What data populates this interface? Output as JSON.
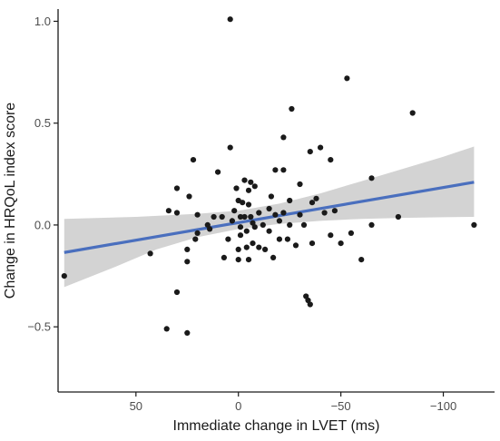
{
  "chart_data": {
    "type": "scatter",
    "title": "",
    "xlabel": "Immediate change in LVET (ms)",
    "ylabel": "Change in HRQoL index score",
    "x_reversed": true,
    "xlim": [
      88,
      -125
    ],
    "ylim": [
      -0.82,
      1.06
    ],
    "x_ticks": [
      50,
      0,
      -50,
      -100
    ],
    "x_tick_labels": [
      "50",
      "0",
      "−50",
      "−100"
    ],
    "y_ticks": [
      -0.5,
      0.0,
      0.5,
      1.0
    ],
    "y_tick_labels": [
      "−0.5",
      "0.0",
      "0.5",
      "1.0"
    ],
    "grid": false,
    "legend": "none",
    "colors": {
      "points": "#1a1a1a",
      "fit_line": "#4a6fbe",
      "confidence_band": "#d3d3d3",
      "axis": "#1a1a1a",
      "tick_text": "#4d4d4d"
    },
    "points": [
      {
        "x": 85,
        "y": -0.25
      },
      {
        "x": 43,
        "y": -0.14
      },
      {
        "x": 34,
        "y": 0.07
      },
      {
        "x": 30,
        "y": 0.18
      },
      {
        "x": 30,
        "y": 0.06
      },
      {
        "x": 35,
        "y": -0.51
      },
      {
        "x": 30,
        "y": -0.33
      },
      {
        "x": 25,
        "y": -0.53
      },
      {
        "x": 25,
        "y": -0.18
      },
      {
        "x": 25,
        "y": -0.12
      },
      {
        "x": 24,
        "y": 0.14
      },
      {
        "x": 22,
        "y": 0.32
      },
      {
        "x": 21,
        "y": -0.07
      },
      {
        "x": 20,
        "y": 0.05
      },
      {
        "x": 20,
        "y": -0.04
      },
      {
        "x": 15,
        "y": 0.0
      },
      {
        "x": 14,
        "y": -0.02
      },
      {
        "x": 12,
        "y": 0.04
      },
      {
        "x": 10,
        "y": 0.26
      },
      {
        "x": 8,
        "y": 0.04
      },
      {
        "x": 7,
        "y": -0.16
      },
      {
        "x": 5,
        "y": -0.07
      },
      {
        "x": 4,
        "y": 1.01
      },
      {
        "x": 4,
        "y": 0.38
      },
      {
        "x": 3,
        "y": 0.02
      },
      {
        "x": 2,
        "y": 0.07
      },
      {
        "x": 1,
        "y": 0.18
      },
      {
        "x": 0,
        "y": 0.12
      },
      {
        "x": -1,
        "y": 0.04
      },
      {
        "x": -1,
        "y": -0.01
      },
      {
        "x": -1,
        "y": -0.05
      },
      {
        "x": 0,
        "y": -0.12
      },
      {
        "x": 0,
        "y": -0.17
      },
      {
        "x": -2,
        "y": 0.11
      },
      {
        "x": -3,
        "y": 0.22
      },
      {
        "x": -3,
        "y": 0.04
      },
      {
        "x": -4,
        "y": -0.03
      },
      {
        "x": -4,
        "y": -0.11
      },
      {
        "x": -5,
        "y": 0.17
      },
      {
        "x": -5,
        "y": 0.1
      },
      {
        "x": -5,
        "y": -0.17
      },
      {
        "x": -6,
        "y": 0.21
      },
      {
        "x": -6,
        "y": 0.04
      },
      {
        "x": -7,
        "y": 0.01
      },
      {
        "x": -7,
        "y": -0.09
      },
      {
        "x": -8,
        "y": 0.19
      },
      {
        "x": -8,
        "y": -0.01
      },
      {
        "x": -10,
        "y": 0.06
      },
      {
        "x": -10,
        "y": -0.11
      },
      {
        "x": -12,
        "y": 0.0
      },
      {
        "x": -13,
        "y": -0.12
      },
      {
        "x": -15,
        "y": 0.08
      },
      {
        "x": -15,
        "y": -0.03
      },
      {
        "x": -16,
        "y": 0.14
      },
      {
        "x": -17,
        "y": -0.16
      },
      {
        "x": -18,
        "y": 0.05
      },
      {
        "x": -18,
        "y": 0.27
      },
      {
        "x": -20,
        "y": 0.02
      },
      {
        "x": -20,
        "y": -0.07
      },
      {
        "x": -22,
        "y": 0.43
      },
      {
        "x": -22,
        "y": 0.27
      },
      {
        "x": -22,
        "y": 0.06
      },
      {
        "x": -24,
        "y": -0.07
      },
      {
        "x": -25,
        "y": 0.12
      },
      {
        "x": -25,
        "y": 0.0
      },
      {
        "x": -26,
        "y": 0.57
      },
      {
        "x": -28,
        "y": -0.1
      },
      {
        "x": -30,
        "y": 0.2
      },
      {
        "x": -30,
        "y": 0.05
      },
      {
        "x": -32,
        "y": 0.0
      },
      {
        "x": -33,
        "y": -0.35
      },
      {
        "x": -34,
        "y": -0.37
      },
      {
        "x": -35,
        "y": -0.39
      },
      {
        "x": -35,
        "y": 0.36
      },
      {
        "x": -36,
        "y": 0.11
      },
      {
        "x": -36,
        "y": -0.09
      },
      {
        "x": -38,
        "y": 0.13
      },
      {
        "x": -40,
        "y": 0.38
      },
      {
        "x": -42,
        "y": 0.06
      },
      {
        "x": -45,
        "y": 0.32
      },
      {
        "x": -45,
        "y": -0.05
      },
      {
        "x": -47,
        "y": 0.07
      },
      {
        "x": -50,
        "y": -0.09
      },
      {
        "x": -53,
        "y": 0.72
      },
      {
        "x": -55,
        "y": -0.04
      },
      {
        "x": -60,
        "y": -0.17
      },
      {
        "x": -65,
        "y": 0.23
      },
      {
        "x": -65,
        "y": 0.0
      },
      {
        "x": -78,
        "y": 0.04
      },
      {
        "x": -85,
        "y": 0.55
      },
      {
        "x": -115,
        "y": 0.0
      }
    ],
    "fit_line": [
      {
        "x": 85,
        "y": -0.135
      },
      {
        "x": -115,
        "y": 0.21
      }
    ],
    "confidence_band": {
      "upper": [
        {
          "x": 85,
          "y": 0.03
        },
        {
          "x": 50,
          "y": 0.04
        },
        {
          "x": 20,
          "y": 0.055
        },
        {
          "x": 0,
          "y": 0.07
        },
        {
          "x": -20,
          "y": 0.105
        },
        {
          "x": -40,
          "y": 0.155
        },
        {
          "x": -60,
          "y": 0.215
        },
        {
          "x": -80,
          "y": 0.275
        },
        {
          "x": -100,
          "y": 0.335
        },
        {
          "x": -115,
          "y": 0.385
        }
      ],
      "lower": [
        {
          "x": 85,
          "y": -0.305
        },
        {
          "x": 60,
          "y": -0.205
        },
        {
          "x": 40,
          "y": -0.12
        },
        {
          "x": 20,
          "y": -0.06
        },
        {
          "x": 0,
          "y": -0.02
        },
        {
          "x": -20,
          "y": 0.005
        },
        {
          "x": -40,
          "y": 0.02
        },
        {
          "x": -60,
          "y": 0.03
        },
        {
          "x": -80,
          "y": 0.035
        },
        {
          "x": -100,
          "y": 0.038
        },
        {
          "x": -115,
          "y": 0.04
        }
      ]
    }
  }
}
